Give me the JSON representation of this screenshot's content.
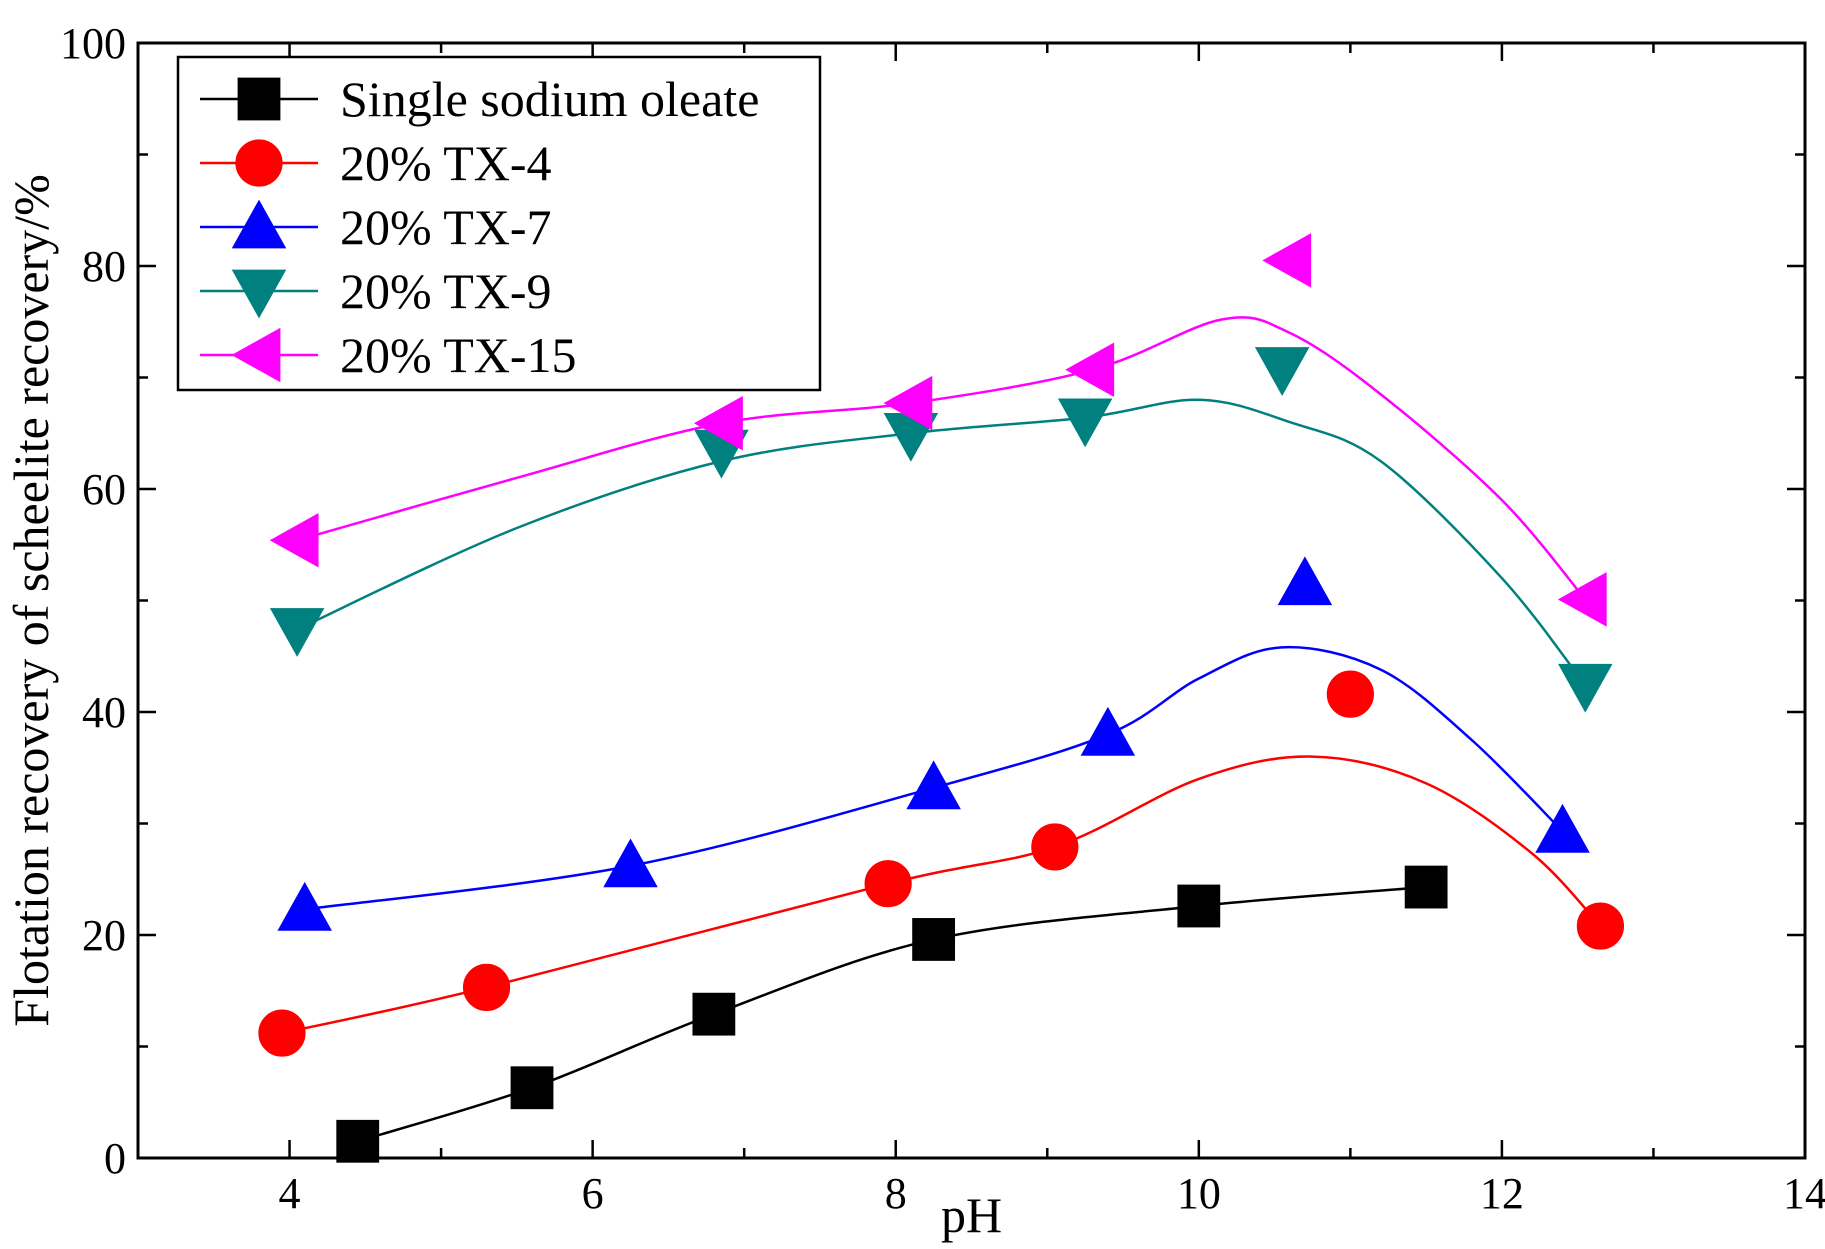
{
  "chart_data": {
    "type": "line",
    "title": "",
    "xlabel": "pH",
    "ylabel": "Flotation recovery of scheelite recovery/%",
    "xlim": [
      3,
      14
    ],
    "ylim": [
      0,
      100
    ],
    "xticks": [
      4,
      6,
      8,
      10,
      12,
      14
    ],
    "yticks": [
      0,
      20,
      40,
      60,
      80,
      100
    ],
    "xticks_labels": [
      "4",
      "6",
      "8",
      "10",
      "12",
      "14"
    ],
    "yticks_labels": [
      "0",
      "20",
      "40",
      "60",
      "80",
      "100"
    ],
    "legend_position": "top-left",
    "series": [
      {
        "name": "Single sodium oleate",
        "color": "#000000",
        "marker": "square",
        "points": [
          [
            4.45,
            1.5
          ],
          [
            5.6,
            6.3
          ],
          [
            6.8,
            12.9
          ],
          [
            8.25,
            19.6
          ],
          [
            10.0,
            22.6
          ],
          [
            11.5,
            24.3
          ]
        ],
        "curve": [
          [
            4.45,
            1.5
          ],
          [
            5.6,
            6.3
          ],
          [
            6.8,
            12.9
          ],
          [
            8.25,
            19.6
          ],
          [
            10.0,
            22.6
          ],
          [
            11.5,
            24.3
          ]
        ]
      },
      {
        "name": "20% TX-4",
        "color": "#ff0000",
        "marker": "circle",
        "points": [
          [
            3.95,
            11.2
          ],
          [
            5.3,
            15.3
          ],
          [
            7.95,
            24.6
          ],
          [
            9.05,
            27.9
          ],
          [
            11.0,
            41.6
          ],
          [
            12.65,
            20.8
          ]
        ],
        "curve": [
          [
            3.95,
            11.2
          ],
          [
            5.3,
            15.3
          ],
          [
            7.95,
            24.6
          ],
          [
            9.05,
            27.9
          ],
          [
            10.0,
            34.0
          ],
          [
            10.75,
            36.0
          ],
          [
            11.5,
            33.6
          ],
          [
            12.2,
            27.3
          ],
          [
            12.65,
            20.8
          ]
        ]
      },
      {
        "name": "20% TX-7",
        "color": "#0000ff",
        "marker": "triangle-up",
        "points": [
          [
            4.1,
            22.3
          ],
          [
            6.25,
            26.2
          ],
          [
            8.25,
            33.2
          ],
          [
            9.4,
            38.0
          ],
          [
            10.7,
            51.5
          ],
          [
            12.4,
            29.3
          ]
        ],
        "curve": [
          [
            4.1,
            22.3
          ],
          [
            6.25,
            26.2
          ],
          [
            8.25,
            33.2
          ],
          [
            9.4,
            38.0
          ],
          [
            10.0,
            43.0
          ],
          [
            10.55,
            45.8
          ],
          [
            11.2,
            43.8
          ],
          [
            11.8,
            37.5
          ],
          [
            12.4,
            29.3
          ]
        ]
      },
      {
        "name": "20% TX-9",
        "color": "#00807f",
        "marker": "triangle-down",
        "points": [
          [
            4.05,
            47.4
          ],
          [
            6.85,
            63.4
          ],
          [
            8.1,
            64.9
          ],
          [
            9.25,
            66.2
          ],
          [
            10.55,
            70.8
          ],
          [
            12.55,
            42.4
          ]
        ],
        "curve": [
          [
            4.05,
            47.4
          ],
          [
            5.5,
            56.5
          ],
          [
            6.85,
            62.5
          ],
          [
            8.1,
            65.0
          ],
          [
            9.25,
            66.4
          ],
          [
            10.0,
            68.0
          ],
          [
            10.6,
            66.0
          ],
          [
            11.2,
            62.5
          ],
          [
            12.0,
            52.0
          ],
          [
            12.55,
            42.4
          ]
        ]
      },
      {
        "name": "20% TX-15",
        "color": "#ff00ff",
        "marker": "triangle-left",
        "points": [
          [
            4.05,
            55.4
          ],
          [
            6.85,
            65.9
          ],
          [
            8.1,
            67.7
          ],
          [
            9.3,
            70.7
          ],
          [
            10.6,
            80.5
          ],
          [
            12.55,
            50.1
          ]
        ],
        "curve": [
          [
            4.05,
            55.4
          ],
          [
            5.5,
            61.0
          ],
          [
            6.85,
            65.9
          ],
          [
            8.1,
            67.7
          ],
          [
            9.3,
            70.7
          ],
          [
            10.15,
            75.2
          ],
          [
            10.6,
            74.0
          ],
          [
            11.2,
            68.5
          ],
          [
            12.0,
            59.0
          ],
          [
            12.55,
            50.1
          ]
        ]
      }
    ]
  }
}
